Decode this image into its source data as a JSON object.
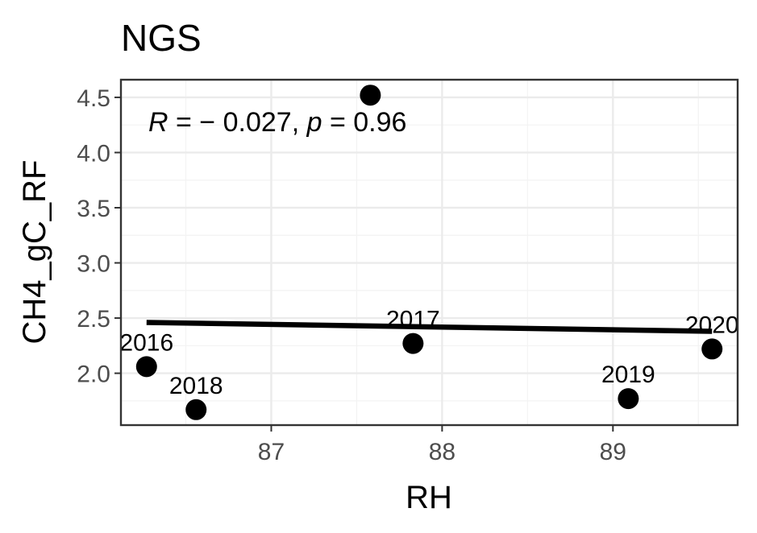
{
  "chart_data": {
    "type": "scatter",
    "title": "NGS",
    "xlabel": "RH",
    "ylabel": "CH4_gC_RF",
    "xlim": [
      86.12,
      89.73
    ],
    "ylim": [
      1.53,
      4.66
    ],
    "x_ticks": [
      87,
      88,
      89
    ],
    "y_ticks": [
      2.0,
      2.5,
      3.0,
      3.5,
      4.0,
      4.5
    ],
    "x_tick_labels": [
      "87",
      "88",
      "89"
    ],
    "y_tick_labels": [
      "2.0",
      "2.5",
      "3.0",
      "3.5",
      "4.0",
      "4.5"
    ],
    "grid": true,
    "points": [
      {
        "x": 86.27,
        "y": 2.06,
        "label": "2016"
      },
      {
        "x": 86.56,
        "y": 1.67,
        "label": "2018"
      },
      {
        "x": 87.58,
        "y": 4.52,
        "label": ""
      },
      {
        "x": 87.83,
        "y": 2.27,
        "label": "2017"
      },
      {
        "x": 89.09,
        "y": 1.77,
        "label": "2019"
      },
      {
        "x": 89.58,
        "y": 2.22,
        "label": "2020"
      }
    ],
    "regression": {
      "x": [
        86.27,
        89.58
      ],
      "y": [
        2.46,
        2.38
      ]
    },
    "annotation": {
      "r_symbol": "R",
      "r_text": " = − 0.027, ",
      "p_symbol": "p",
      "p_text": " = 0.96"
    },
    "colors": {
      "points": "#000000",
      "line": "#000000",
      "panel_border": "#333333"
    }
  }
}
